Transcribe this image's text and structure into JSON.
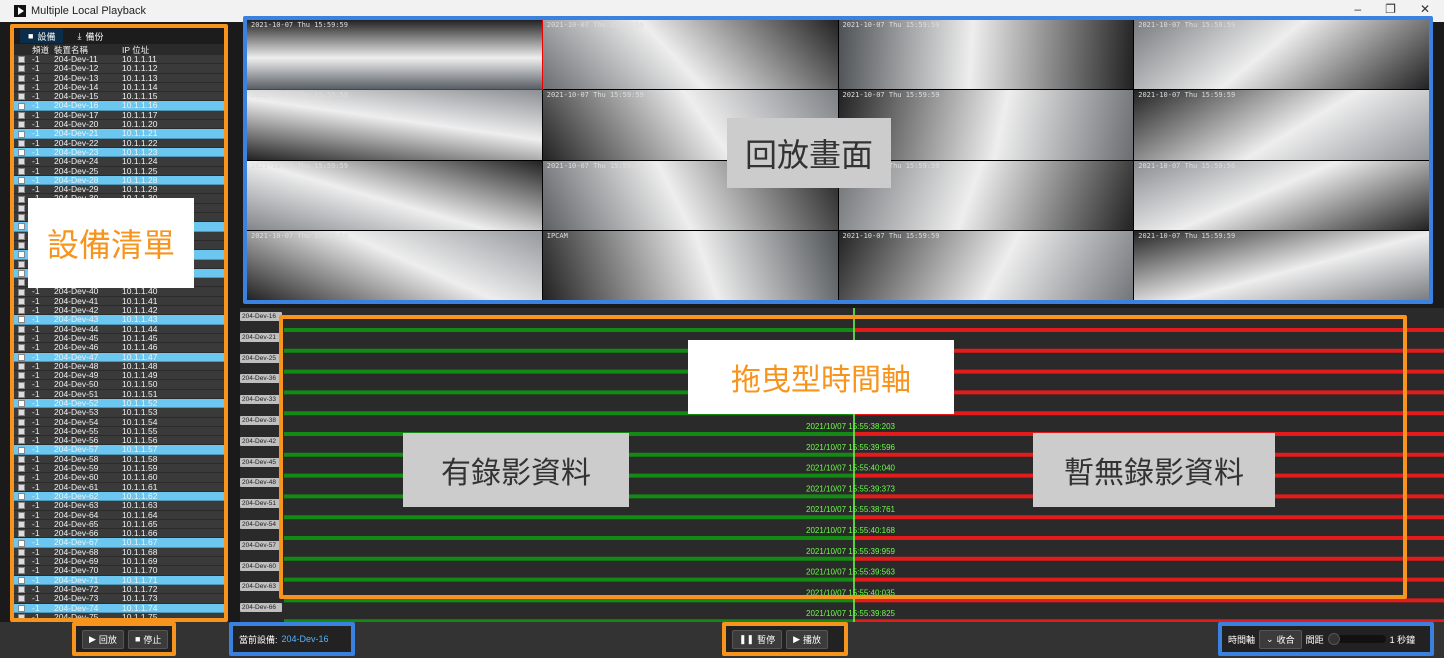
{
  "window": {
    "title": "Multiple Local Playback",
    "minimize": "–",
    "maximize": "❐",
    "close": "✕"
  },
  "left_panel": {
    "tabs": [
      {
        "label": "設備",
        "icon": "camera-icon"
      },
      {
        "label": "備份",
        "icon": "download-icon"
      }
    ],
    "columns": {
      "channel": "頻道",
      "name": "裝置名稱",
      "ip": "IP 位址"
    },
    "devices": [
      {
        "ch": "-1",
        "name": "204-Dev-11",
        "ip": "10.1.1.11",
        "checked": false
      },
      {
        "ch": "-1",
        "name": "204-Dev-12",
        "ip": "10.1.1.12",
        "checked": false
      },
      {
        "ch": "-1",
        "name": "204-Dev-13",
        "ip": "10.1.1.13",
        "checked": false
      },
      {
        "ch": "-1",
        "name": "204-Dev-14",
        "ip": "10.1.1.14",
        "checked": false
      },
      {
        "ch": "-1",
        "name": "204-Dev-15",
        "ip": "10.1.1.15",
        "checked": false
      },
      {
        "ch": "-1",
        "name": "204-Dev-16",
        "ip": "10.1.1.16",
        "checked": true
      },
      {
        "ch": "-1",
        "name": "204-Dev-17",
        "ip": "10.1.1.17",
        "checked": false
      },
      {
        "ch": "-1",
        "name": "204-Dev-20",
        "ip": "10.1.1.20",
        "checked": false
      },
      {
        "ch": "-1",
        "name": "204-Dev-21",
        "ip": "10.1.1.21",
        "checked": true
      },
      {
        "ch": "-1",
        "name": "204-Dev-22",
        "ip": "10.1.1.22",
        "checked": false
      },
      {
        "ch": "-1",
        "name": "204-Dev-23",
        "ip": "10.1.1.23",
        "checked": true
      },
      {
        "ch": "-1",
        "name": "204-Dev-24",
        "ip": "10.1.1.24",
        "checked": false
      },
      {
        "ch": "-1",
        "name": "204-Dev-25",
        "ip": "10.1.1.25",
        "checked": false
      },
      {
        "ch": "-1",
        "name": "204-Dev-28",
        "ip": "10.1.1.28",
        "checked": true
      },
      {
        "ch": "-1",
        "name": "204-Dev-29",
        "ip": "10.1.1.29",
        "checked": false
      },
      {
        "ch": "-1",
        "name": "204-Dev-30",
        "ip": "10.1.1.30",
        "checked": false
      },
      {
        "ch": "-1",
        "name": "204-Dev-31",
        "ip": "10.1.1.31",
        "checked": false
      },
      {
        "ch": "-1",
        "name": "204-Dev-32",
        "ip": "10.1.1.32",
        "checked": false
      },
      {
        "ch": "-1",
        "name": "204-Dev-33",
        "ip": "10.1.1.33",
        "checked": true
      },
      {
        "ch": "-1",
        "name": "204-Dev-34",
        "ip": "10.1.1.34",
        "checked": false
      },
      {
        "ch": "-1",
        "name": "204-Dev-35",
        "ip": "10.1.1.35",
        "checked": false
      },
      {
        "ch": "-1",
        "name": "204-Dev-36",
        "ip": "10.1.1.36",
        "checked": true
      },
      {
        "ch": "-1",
        "name": "204-Dev-37",
        "ip": "10.1.1.37",
        "checked": false
      },
      {
        "ch": "-1",
        "name": "204-Dev-38",
        "ip": "10.1.1.38",
        "checked": true
      },
      {
        "ch": "-1",
        "name": "204-Dev-39",
        "ip": "10.1.1.39",
        "checked": false
      },
      {
        "ch": "-1",
        "name": "204-Dev-40",
        "ip": "10.1.1.40",
        "checked": false
      },
      {
        "ch": "-1",
        "name": "204-Dev-41",
        "ip": "10.1.1.41",
        "checked": false
      },
      {
        "ch": "-1",
        "name": "204-Dev-42",
        "ip": "10.1.1.42",
        "checked": false
      },
      {
        "ch": "-1",
        "name": "204-Dev-43",
        "ip": "10.1.1.43",
        "checked": true
      },
      {
        "ch": "-1",
        "name": "204-Dev-44",
        "ip": "10.1.1.44",
        "checked": false
      },
      {
        "ch": "-1",
        "name": "204-Dev-45",
        "ip": "10.1.1.45",
        "checked": false
      },
      {
        "ch": "-1",
        "name": "204-Dev-46",
        "ip": "10.1.1.46",
        "checked": false
      },
      {
        "ch": "-1",
        "name": "204-Dev-47",
        "ip": "10.1.1.47",
        "checked": true
      },
      {
        "ch": "-1",
        "name": "204-Dev-48",
        "ip": "10.1.1.48",
        "checked": false
      },
      {
        "ch": "-1",
        "name": "204-Dev-49",
        "ip": "10.1.1.49",
        "checked": false
      },
      {
        "ch": "-1",
        "name": "204-Dev-50",
        "ip": "10.1.1.50",
        "checked": false
      },
      {
        "ch": "-1",
        "name": "204-Dev-51",
        "ip": "10.1.1.51",
        "checked": false
      },
      {
        "ch": "-1",
        "name": "204-Dev-52",
        "ip": "10.1.1.52",
        "checked": true
      },
      {
        "ch": "-1",
        "name": "204-Dev-53",
        "ip": "10.1.1.53",
        "checked": false
      },
      {
        "ch": "-1",
        "name": "204-Dev-54",
        "ip": "10.1.1.54",
        "checked": false
      },
      {
        "ch": "-1",
        "name": "204-Dev-55",
        "ip": "10.1.1.55",
        "checked": false
      },
      {
        "ch": "-1",
        "name": "204-Dev-56",
        "ip": "10.1.1.56",
        "checked": false
      },
      {
        "ch": "-1",
        "name": "204-Dev-57",
        "ip": "10.1.1.57",
        "checked": true
      },
      {
        "ch": "-1",
        "name": "204-Dev-58",
        "ip": "10.1.1.58",
        "checked": false
      },
      {
        "ch": "-1",
        "name": "204-Dev-59",
        "ip": "10.1.1.59",
        "checked": false
      },
      {
        "ch": "-1",
        "name": "204-Dev-60",
        "ip": "10.1.1.60",
        "checked": false
      },
      {
        "ch": "-1",
        "name": "204-Dev-61",
        "ip": "10.1.1.61",
        "checked": false
      },
      {
        "ch": "-1",
        "name": "204-Dev-62",
        "ip": "10.1.1.62",
        "checked": true
      },
      {
        "ch": "-1",
        "name": "204-Dev-63",
        "ip": "10.1.1.63",
        "checked": false
      },
      {
        "ch": "-1",
        "name": "204-Dev-64",
        "ip": "10.1.1.64",
        "checked": false
      },
      {
        "ch": "-1",
        "name": "204-Dev-65",
        "ip": "10.1.1.65",
        "checked": false
      },
      {
        "ch": "-1",
        "name": "204-Dev-66",
        "ip": "10.1.1.66",
        "checked": false
      },
      {
        "ch": "-1",
        "name": "204-Dev-67",
        "ip": "10.1.1.67",
        "checked": true
      },
      {
        "ch": "-1",
        "name": "204-Dev-68",
        "ip": "10.1.1.68",
        "checked": false
      },
      {
        "ch": "-1",
        "name": "204-Dev-69",
        "ip": "10.1.1.69",
        "checked": false
      },
      {
        "ch": "-1",
        "name": "204-Dev-70",
        "ip": "10.1.1.70",
        "checked": false
      },
      {
        "ch": "-1",
        "name": "204-Dev-71",
        "ip": "10.1.1.71",
        "checked": true
      },
      {
        "ch": "-1",
        "name": "204-Dev-72",
        "ip": "10.1.1.72",
        "checked": false
      },
      {
        "ch": "-1",
        "name": "204-Dev-73",
        "ip": "10.1.1.73",
        "checked": false
      },
      {
        "ch": "-1",
        "name": "204-Dev-74",
        "ip": "10.1.1.74",
        "checked": true
      },
      {
        "ch": "-1",
        "name": "204-Dev-75",
        "ip": "10.1.1.75",
        "checked": false
      }
    ],
    "overlay_label": "設備清單"
  },
  "video": {
    "overlay_label": "回放畫面",
    "cells": [
      {
        "ts": "2021-10-07 Thu 15:59:59",
        "tone": "#5a5f66",
        "highlight": true
      },
      {
        "ts": "2021-10-07 Thu 15:59:59",
        "tone": "#6b6e72"
      },
      {
        "ts": "2021-10-07 Thu 15:59:59",
        "tone": "#4e5256"
      },
      {
        "ts": "2021-10-07 Thu 15:59:59",
        "tone": "#777a7e"
      },
      {
        "ts": "2021-10-07 Thu 15:59:59",
        "tone": "#8c8f94"
      },
      {
        "ts": "2021-10-07 Thu 15:59:59",
        "tone": "#7d8085"
      },
      {
        "ts": "2021-10-07 Thu 15:59:59",
        "tone": "#6a6d71"
      },
      {
        "ts": "2021-10-07 Thu 15:59:59",
        "tone": "#909398"
      },
      {
        "ts": "2021-10-07 Thu 15:59:59",
        "tone": "#82858a"
      },
      {
        "ts": "2021-10-07 Thu 15:59:59",
        "tone": "#5d6064"
      },
      {
        "ts": "2021-10-07 Thu 15:59:59",
        "tone": "#6f7276"
      },
      {
        "ts": "2021-10-07 Thu 15:59:56",
        "tone": "#888b90"
      },
      {
        "ts": "2021-10-07 Thu 15:59:59",
        "tone": "#95989d"
      },
      {
        "ts": "IPCAM",
        "tone": "#4f5357"
      },
      {
        "ts": "2021-10-07 Thu 15:59:59",
        "tone": "#72757a"
      },
      {
        "ts": "2021-10-07 Thu 15:59:59",
        "tone": "#7a7d82"
      }
    ]
  },
  "timeline": {
    "overlay_drag": "拖曳型時間軸",
    "overlay_recorded": "有錄影資料",
    "overlay_none": "暫無錄影資料",
    "cursor_fraction": 0.5,
    "rows": [
      {
        "label": "204-Dev-16",
        "time": "",
        "recorded_fraction": 0.5
      },
      {
        "label": "204-Dev-21",
        "time": "2021/10/07 15:55:37:615",
        "recorded_fraction": 0.5
      },
      {
        "label": "204-Dev-25",
        "time": "",
        "recorded_fraction": 0.5
      },
      {
        "label": "204-Dev-36",
        "time": "",
        "recorded_fraction": 0.5
      },
      {
        "label": "204-Dev-33",
        "time": "",
        "recorded_fraction": 0.5
      },
      {
        "label": "204-Dev-38",
        "time": "2021/10/07 15:55:38:203",
        "recorded_fraction": 0.5
      },
      {
        "label": "204-Dev-42",
        "time": "2021/10/07 15:55:39:596",
        "recorded_fraction": 0.5
      },
      {
        "label": "204-Dev-45",
        "time": "2021/10/07 15:55:40:040",
        "recorded_fraction": 0.5
      },
      {
        "label": "204-Dev-48",
        "time": "2021/10/07 15:55:39:373",
        "recorded_fraction": 0.5
      },
      {
        "label": "204-Dev-51",
        "time": "2021/10/07 15:55:38:761",
        "recorded_fraction": 0.5
      },
      {
        "label": "204-Dev-54",
        "time": "2021/10/07 15:55:40:168",
        "recorded_fraction": 0.5
      },
      {
        "label": "204-Dev-57",
        "time": "2021/10/07 15:55:39:959",
        "recorded_fraction": 0.5
      },
      {
        "label": "204-Dev-60",
        "time": "2021/10/07 15:55:39:563",
        "recorded_fraction": 0.5
      },
      {
        "label": "204-Dev-63",
        "time": "2021/10/07 15:55:40:035",
        "recorded_fraction": 0.5
      },
      {
        "label": "204-Dev-66",
        "time": "2021/10/07 15:55:39:825",
        "recorded_fraction": 0.5
      }
    ],
    "colors": {
      "recorded": "#138a13",
      "none": "#e31b1b",
      "cursor": "#6cff4a"
    }
  },
  "bottom": {
    "playback": "回放",
    "stop": "停止",
    "current_device_label": "當前設備:",
    "current_device_value": "204-Dev-16",
    "pause": "暫停",
    "play": "播放",
    "timeline_label": "時間軸",
    "collapse": "收合",
    "spacing_label": "間距",
    "spacing_value": "1 秒鐘"
  }
}
